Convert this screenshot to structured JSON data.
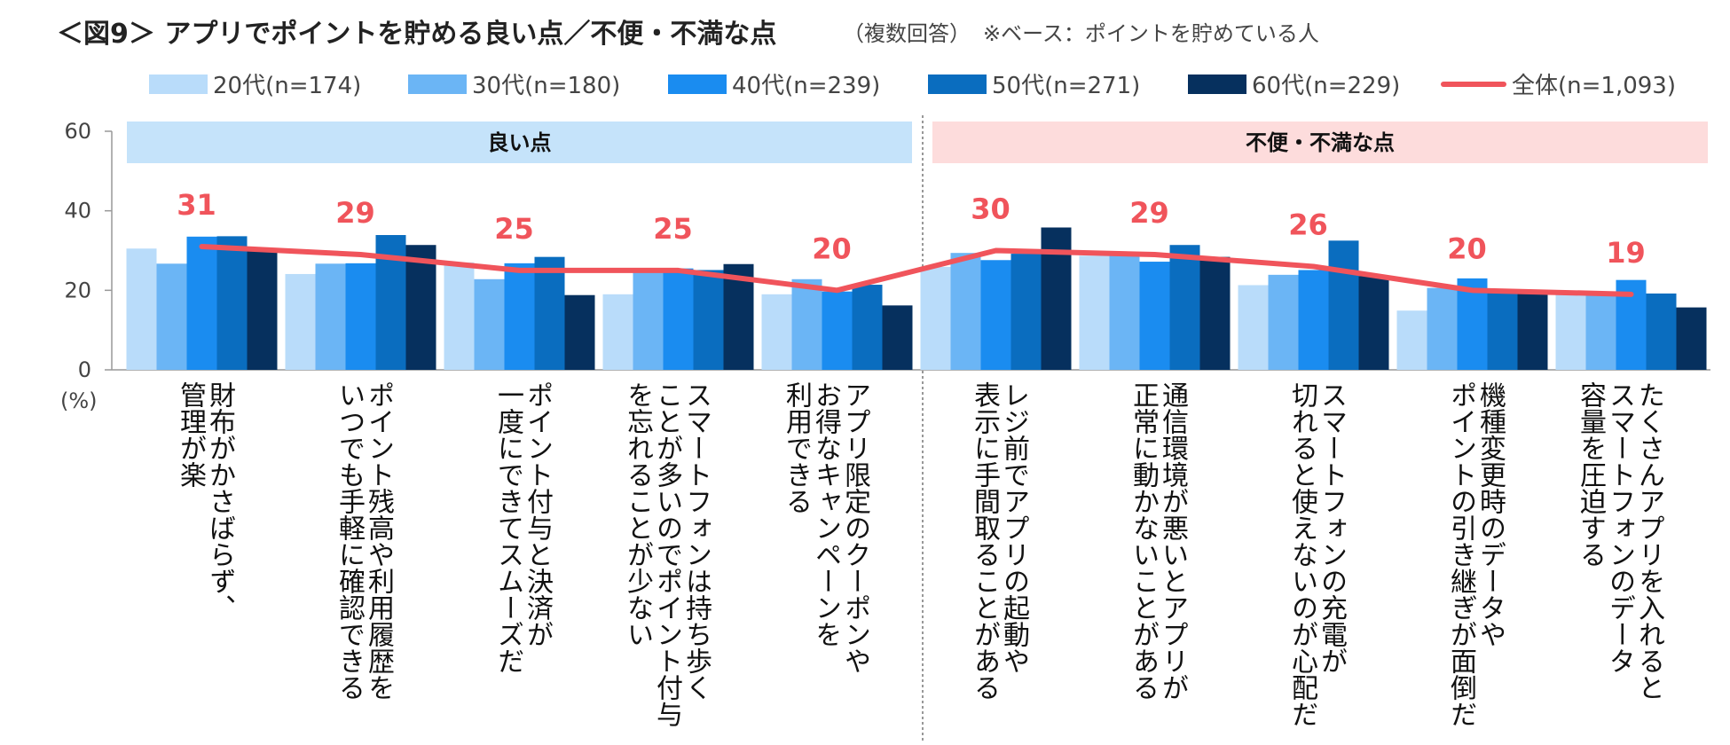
{
  "title": {
    "main": "＜図9＞ アプリでポイントを貯める良い点／不便・不満な点",
    "note": "（複数回答）",
    "base": "※ベース：ポイントを貯めている人"
  },
  "chart_data": {
    "type": "bar",
    "ylim": [
      0,
      60
    ],
    "yticks": [
      0,
      20,
      40,
      60
    ],
    "yunit": "(%)",
    "sections": [
      {
        "label": "良い点",
        "color": "#C5E3FA"
      },
      {
        "label": "不便・不満な点",
        "color": "#FDDCDC"
      }
    ],
    "categories": [
      [
        "財布がかさばらず、",
        "管理が楽"
      ],
      [
        "ポイント残高や利用履歴を",
        "いつでも手軽に確認できる"
      ],
      [
        "ポイント付与と決済が",
        "一度にできてスムーズだ"
      ],
      [
        "スマートフォンは持ち歩く",
        "ことが多いのでポイント付与",
        "を忘れることが少ない"
      ],
      [
        "アプリ限定のクーポンや",
        "お得なキャンペーンを",
        "利用できる"
      ],
      [
        "レジ前でアプリの起動や",
        "表示に手間取ることがある"
      ],
      [
        "通信環境が悪いとアプリが",
        "正常に動かないことがある"
      ],
      [
        "スマートフォンの充電が",
        "切れると使えないのが心配だ"
      ],
      [
        "機種変更時のデータや",
        "ポイントの引き継ぎが面倒だ"
      ],
      [
        "たくさんアプリを入れると",
        "スマートフォンのデータ",
        "容量を圧迫する"
      ]
    ],
    "series": [
      {
        "name": "20代(n=174)",
        "color": "#B9DCFA",
        "values": [
          30.5,
          24.1,
          27.0,
          19.0,
          19.0,
          25.9,
          28.7,
          21.3,
          14.9,
          19.5
        ]
      },
      {
        "name": "30代(n=180)",
        "color": "#6BB5F5",
        "values": [
          26.7,
          26.7,
          22.8,
          25.0,
          22.8,
          29.4,
          28.9,
          23.9,
          20.6,
          18.9
        ]
      },
      {
        "name": "40代(n=239)",
        "color": "#1A8CF0",
        "values": [
          33.5,
          26.8,
          26.8,
          25.5,
          19.7,
          27.6,
          27.2,
          25.1,
          23.0,
          22.6
        ]
      },
      {
        "name": "50代(n=271)",
        "color": "#0A6DBF",
        "values": [
          33.6,
          33.9,
          28.4,
          25.1,
          21.4,
          29.2,
          31.4,
          32.5,
          19.9,
          19.2
        ]
      },
      {
        "name": "60代(n=229)",
        "color": "#06305E",
        "values": [
          30.1,
          31.4,
          18.8,
          26.6,
          16.2,
          35.8,
          28.4,
          23.6,
          19.2,
          15.7
        ]
      }
    ],
    "line": {
      "name": "全体(n=1,093)",
      "color": "#F0545B",
      "values": [
        31,
        29,
        25,
        25,
        20,
        30,
        29,
        26,
        20,
        19
      ]
    }
  }
}
